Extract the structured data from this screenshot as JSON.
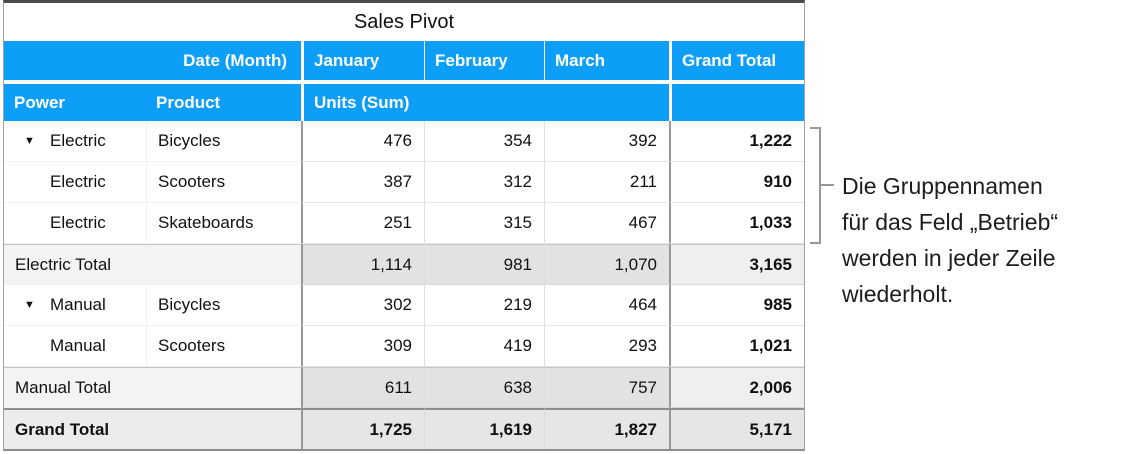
{
  "title": "Sales Pivot",
  "icons": {
    "disclosure": "▼"
  },
  "colors": {
    "header_blue": "#0d9ff7",
    "subtotal_gray": "#e3e2e0",
    "grandtotal_gray": "#e7e6e4",
    "bracket_gray": "#98989b"
  },
  "table": {
    "header_row1": {
      "label": "Date (Month)",
      "columns": [
        "January",
        "February",
        "March",
        "Grand Total"
      ]
    },
    "header_row2": {
      "power": "Power",
      "product": "Product",
      "units": "Units (Sum)"
    },
    "rows": [
      {
        "power": "Electric",
        "product": "Bicycles",
        "jan": "476",
        "feb": "354",
        "mar": "392",
        "total": "1,222"
      },
      {
        "power": "Electric",
        "product": "Scooters",
        "jan": "387",
        "feb": "312",
        "mar": "211",
        "total": "910"
      },
      {
        "power": "Electric",
        "product": "Skateboards",
        "jan": "251",
        "feb": "315",
        "mar": "467",
        "total": "1,033"
      },
      {
        "label": "Electric Total",
        "jan": "1,114",
        "feb": "981",
        "mar": "1,070",
        "total": "3,165"
      },
      {
        "power": "Manual",
        "product": "Bicycles",
        "jan": "302",
        "feb": "219",
        "mar": "464",
        "total": "985"
      },
      {
        "power": "Manual",
        "product": "Scooters",
        "jan": "309",
        "feb": "419",
        "mar": "293",
        "total": "1,021"
      },
      {
        "label": "Manual Total",
        "jan": "611",
        "feb": "638",
        "mar": "757",
        "total": "2,006"
      },
      {
        "label": "Grand Total",
        "jan": "1,725",
        "feb": "1,619",
        "mar": "1,827",
        "total": "5,171"
      }
    ]
  },
  "annotation": {
    "lines": [
      "Die Gruppennamen",
      "für das Feld „Betrieb“",
      "werden in jeder Zeile",
      "wiederholt."
    ]
  }
}
